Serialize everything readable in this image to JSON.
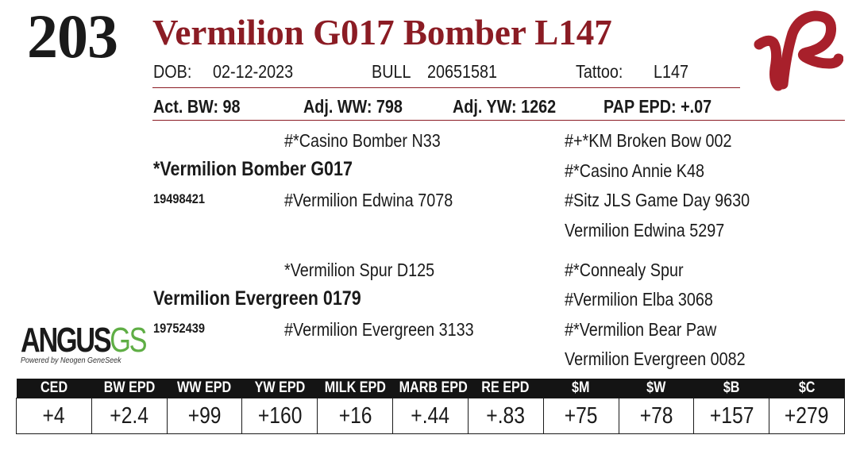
{
  "lot_number": "203",
  "animal_name": "Vermilion G017 Bomber L147",
  "header_row": {
    "dob_label": "DOB:",
    "dob_value": "02-12-2023",
    "sex": "BULL",
    "registration": "20651581",
    "tattoo_label": "Tattoo:",
    "tattoo_value": "L147"
  },
  "performance_row": {
    "act_bw": "Act. BW: 98",
    "adj_ww": "Adj. WW: 798",
    "adj_yw": "Adj. YW: 1262",
    "pap_epd": "PAP EPD: +.07"
  },
  "pedigree": {
    "sire": "*Vermilion Bomber G017",
    "sire_reg": "19498421",
    "sire_sire": "#*Casino Bomber N33",
    "sire_dam": "#Vermilion Edwina 7078",
    "sire_sire_sire": "#+*KM Broken Bow 002",
    "sire_sire_dam": "#*Casino Annie K48",
    "sire_dam_sire": "#Sitz JLS Game Day 9630",
    "sire_dam_dam": "Vermilion Edwina 5297",
    "dam": "Vermilion Evergreen 0179",
    "dam_reg": "19752439",
    "dam_sire": "*Vermilion Spur D125",
    "dam_dam": "#Vermilion Evergreen 3133",
    "dam_sire_sire": "#*Connealy Spur",
    "dam_sire_dam": "#Vermilion Elba 3068",
    "dam_dam_sire": "#*Vermilion Bear Paw",
    "dam_dam_dam": "Vermilion Evergreen 0082"
  },
  "angus_logo": {
    "word": "ANGUS",
    "suffix": "GS",
    "tagline": "Powered by Neogen GeneSeek"
  },
  "epd_table": {
    "headers": [
      "CED",
      "BW EPD",
      "WW EPD",
      "YW EPD",
      "MILK EPD",
      "MARB EPD",
      "RE EPD",
      "$M",
      "$W",
      "$B",
      "$C"
    ],
    "values": [
      "+4",
      "+2.4",
      "+99",
      "+160",
      "+16",
      "+.44",
      "+.83",
      "+75",
      "+78",
      "+157",
      "+279"
    ]
  },
  "colors": {
    "brand_red": "#8b1c24",
    "logo_red": "#a8202b",
    "genomic_green": "#5fae45",
    "header_black": "#141414"
  },
  "icons": {
    "brand_logo": "vr-brand-logo",
    "angus_logo": "angus-gs-logo"
  }
}
